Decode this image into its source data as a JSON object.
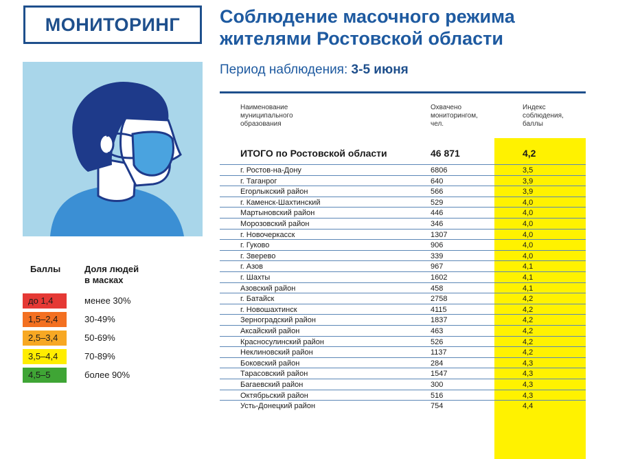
{
  "badge": "МОНИТОРИНГ",
  "title": {
    "line1": "Соблюдение масочного режима",
    "line2": "жителями Ростовской области"
  },
  "period": {
    "label": "Период наблюдения:",
    "value": "3-5 июня"
  },
  "illustration": {
    "icon": "person-wearing-mask-icon"
  },
  "legend": {
    "col1_header": "Баллы",
    "col2_header_line1": "Доля людей",
    "col2_header_line2": "в масках",
    "items": [
      {
        "score": "до 1,4",
        "share": "менее 30%",
        "color": "#e53935"
      },
      {
        "score": "1,5–2,4",
        "share": "30-49%",
        "color": "#f37021"
      },
      {
        "score": "2,5–3,4",
        "share": "50-69%",
        "color": "#f7a823"
      },
      {
        "score": "3,5–4,4",
        "share": "70-89%",
        "color": "#ffed00"
      },
      {
        "score": "4,5–5",
        "share": "более 90%",
        "color": "#3fa535"
      }
    ]
  },
  "table": {
    "headers": {
      "name": [
        "Наименование",
        "муниципального",
        "образования"
      ],
      "count": [
        "Охвачено",
        "мониторингом,",
        "чел."
      ],
      "index": [
        "Индекс",
        "соблюдения,",
        "баллы"
      ]
    },
    "total": {
      "name": "ИТОГО по Ростовской области",
      "count": "46 871",
      "index": "4,2"
    },
    "rows": [
      {
        "name": "г. Ростов-на-Дону",
        "count": "6806",
        "index": "3,5"
      },
      {
        "name": "г. Таганрог",
        "count": "640",
        "index": "3,9"
      },
      {
        "name": "Егорлыкский район",
        "count": "566",
        "index": "3,9"
      },
      {
        "name": "г. Каменск-Шахтинский",
        "count": "529",
        "index": "4,0"
      },
      {
        "name": "Мартыновский район",
        "count": "446",
        "index": "4,0"
      },
      {
        "name": "Морозовский район",
        "count": "346",
        "index": "4,0"
      },
      {
        "name": "г. Новочеркасск",
        "count": "1307",
        "index": "4,0"
      },
      {
        "name": "г. Гуково",
        "count": "906",
        "index": "4,0"
      },
      {
        "name": "г. Зверево",
        "count": "339",
        "index": "4,0"
      },
      {
        "name": "г. Азов",
        "count": "967",
        "index": "4,1"
      },
      {
        "name": "г. Шахты",
        "count": "1602",
        "index": "4,1"
      },
      {
        "name": "Азовский район",
        "count": "458",
        "index": "4,1"
      },
      {
        "name": "г. Батайск",
        "count": "2758",
        "index": "4,2"
      },
      {
        "name": "г. Новошахтинск",
        "count": "4115",
        "index": "4,2"
      },
      {
        "name": "Зерноградский район",
        "count": "1837",
        "index": "4,2"
      },
      {
        "name": "Аксайский район",
        "count": "463",
        "index": "4,2"
      },
      {
        "name": "Красносулинский район",
        "count": "526",
        "index": "4,2"
      },
      {
        "name": "Неклиновский район",
        "count": "1137",
        "index": "4,2"
      },
      {
        "name": "Боковский район",
        "count": "284",
        "index": "4,3"
      },
      {
        "name": "Тарасовский район",
        "count": "1547",
        "index": "4,3"
      },
      {
        "name": "Багаевский район",
        "count": "300",
        "index": "4,3"
      },
      {
        "name": "Октябрьский район",
        "count": "516",
        "index": "4,3"
      },
      {
        "name": "Усть-Донецкий район",
        "count": "754",
        "index": "4,4"
      }
    ]
  }
}
